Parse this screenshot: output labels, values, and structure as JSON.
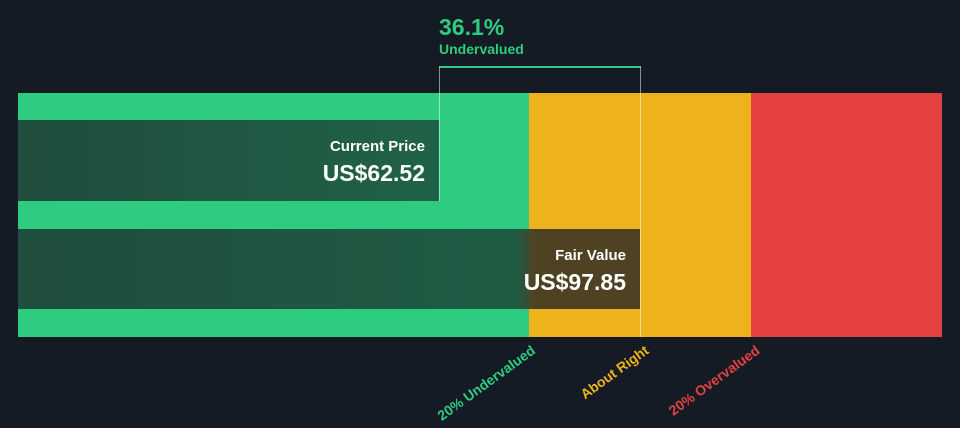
{
  "chart_data": {
    "type": "bar",
    "headline": {
      "percent": "36.1%",
      "label": "Undervalued"
    },
    "current_price": {
      "label": "Current Price",
      "value": "US$62.52",
      "amount": 62.52
    },
    "fair_value": {
      "label": "Fair Value",
      "value": "US$97.85",
      "amount": 97.85
    },
    "zones": [
      {
        "label": "20% Undervalued",
        "color": "#2ecc80"
      },
      {
        "label": "About Right",
        "color": "#edb21c"
      },
      {
        "label": "20% Overvalued",
        "color": "#e54141"
      }
    ],
    "colors": {
      "background": "#151b24",
      "bar": "#1f4a3c",
      "accent": "#2ecc80"
    }
  }
}
